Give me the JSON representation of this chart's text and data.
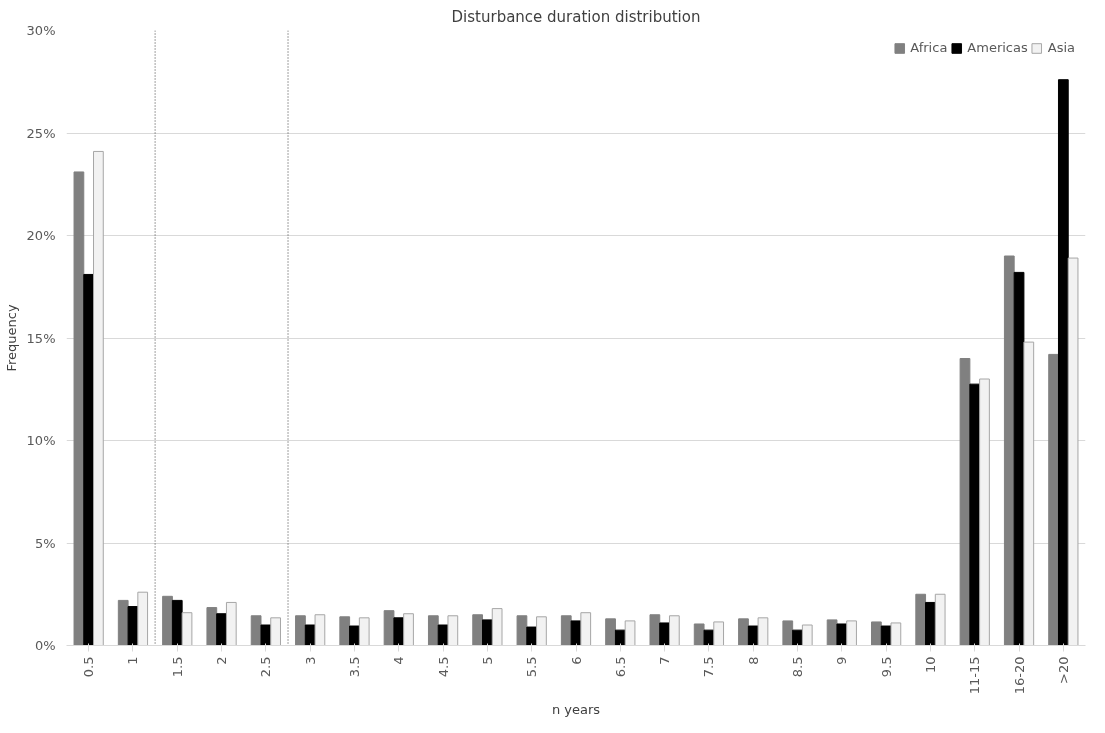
{
  "chart_data": {
    "type": "bar",
    "title": "Disturbance duration distribution",
    "xlabel": "n years",
    "ylabel": "Frequency",
    "categories": [
      "0.5",
      "1",
      "1.5",
      "2",
      "2.5",
      "3",
      "3.5",
      "4",
      "4.5",
      "5",
      "5.5",
      "6",
      "6.5",
      "7",
      "7.5",
      "8",
      "8.5",
      "9",
      "9.5",
      "10",
      "11-15",
      "16-20",
      ">20"
    ],
    "series": [
      {
        "name": "Africa",
        "color": "#808080",
        "values": [
          23.1,
          2.2,
          2.4,
          1.85,
          1.45,
          1.45,
          1.4,
          1.7,
          1.45,
          1.5,
          1.45,
          1.45,
          1.3,
          1.5,
          1.05,
          1.3,
          1.2,
          1.25,
          1.15,
          2.5,
          14.0,
          19.0,
          14.2
        ]
      },
      {
        "name": "Americas",
        "color": "#000000",
        "values": [
          18.1,
          1.9,
          2.2,
          1.55,
          1.0,
          1.0,
          0.95,
          1.35,
          1.0,
          1.25,
          0.9,
          1.2,
          0.75,
          1.1,
          0.75,
          0.95,
          0.75,
          1.05,
          0.95,
          2.1,
          12.75,
          18.2,
          27.6
        ]
      },
      {
        "name": "Asia",
        "color": "#f2f2f2",
        "values": [
          24.1,
          2.6,
          1.6,
          2.1,
          1.35,
          1.5,
          1.35,
          1.55,
          1.45,
          1.8,
          1.4,
          1.6,
          1.2,
          1.45,
          1.15,
          1.35,
          1.0,
          1.2,
          1.1,
          2.5,
          13.0,
          14.8,
          18.9
        ]
      }
    ],
    "ylim": [
      0,
      30
    ],
    "yticks": [
      {
        "value": 0,
        "label": "0%"
      },
      {
        "value": 5,
        "label": "5%"
      },
      {
        "value": 10,
        "label": "10%"
      },
      {
        "value": 15,
        "label": "15%"
      },
      {
        "value": 20,
        "label": "20%"
      },
      {
        "value": 25,
        "label": "25%"
      },
      {
        "value": 30,
        "label": "30%"
      }
    ],
    "grid": "y",
    "legend": "top right"
  }
}
